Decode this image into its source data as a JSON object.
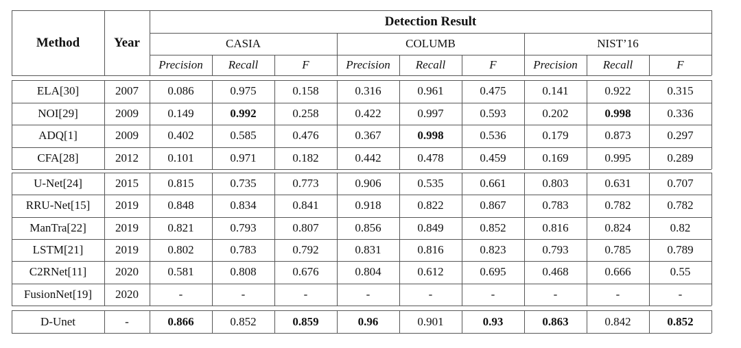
{
  "table": {
    "header": {
      "method": "Method",
      "year": "Year",
      "group_title": "Detection Result",
      "datasets": [
        "CASIA",
        "COLUMB",
        "NIST’16"
      ],
      "metrics": [
        "Precision",
        "Recall",
        "F"
      ]
    },
    "groups": [
      [
        {
          "method": "ELA[30]",
          "year": "2007",
          "values": [
            "0.086",
            "0.975",
            "0.158",
            "0.316",
            "0.961",
            "0.475",
            "0.141",
            "0.922",
            "0.315"
          ],
          "bold": []
        },
        {
          "method": "NOI[29]",
          "year": "2009",
          "values": [
            "0.149",
            "0.992",
            "0.258",
            "0.422",
            "0.997",
            "0.593",
            "0.202",
            "0.998",
            "0.336"
          ],
          "bold": [
            1,
            7
          ]
        },
        {
          "method": "ADQ[1]",
          "year": "2009",
          "values": [
            "0.402",
            "0.585",
            "0.476",
            "0.367",
            "0.998",
            "0.536",
            "0.179",
            "0.873",
            "0.297"
          ],
          "bold": [
            4
          ]
        },
        {
          "method": "CFA[28]",
          "year": "2012",
          "values": [
            "0.101",
            "0.971",
            "0.182",
            "0.442",
            "0.478",
            "0.459",
            "0.169",
            "0.995",
            "0.289"
          ],
          "bold": []
        }
      ],
      [
        {
          "method": "U-Net[24]",
          "year": "2015",
          "values": [
            "0.815",
            "0.735",
            "0.773",
            "0.906",
            "0.535",
            "0.661",
            "0.803",
            "0.631",
            "0.707"
          ],
          "bold": []
        },
        {
          "method": "RRU-Net[15]",
          "year": "2019",
          "values": [
            "0.848",
            "0.834",
            "0.841",
            "0.918",
            "0.822",
            "0.867",
            "0.783",
            "0.782",
            "0.782"
          ],
          "bold": []
        },
        {
          "method": "ManTra[22]",
          "year": "2019",
          "values": [
            "0.821",
            "0.793",
            "0.807",
            "0.856",
            "0.849",
            "0.852",
            "0.816",
            "0.824",
            "0.82"
          ],
          "bold": []
        },
        {
          "method": "LSTM[21]",
          "year": "2019",
          "values": [
            "0.802",
            "0.783",
            "0.792",
            "0.831",
            "0.816",
            "0.823",
            "0.793",
            "0.785",
            "0.789"
          ],
          "bold": []
        },
        {
          "method": "C2RNet[11]",
          "year": "2020",
          "values": [
            "0.581",
            "0.808",
            "0.676",
            "0.804",
            "0.612",
            "0.695",
            "0.468",
            "0.666",
            "0.55"
          ],
          "bold": []
        },
        {
          "method": "FusionNet[19]",
          "year": "2020",
          "values": [
            "-",
            "-",
            "-",
            "-",
            "-",
            "-",
            "-",
            "-",
            "-"
          ],
          "bold": []
        }
      ],
      [
        {
          "method": "D-Unet",
          "year": "-",
          "values": [
            "0.866",
            "0.852",
            "0.859",
            "0.96",
            "0.901",
            "0.93",
            "0.863",
            "0.842",
            "0.852"
          ],
          "bold": [
            0,
            2,
            3,
            5,
            6,
            8
          ]
        }
      ]
    ]
  }
}
